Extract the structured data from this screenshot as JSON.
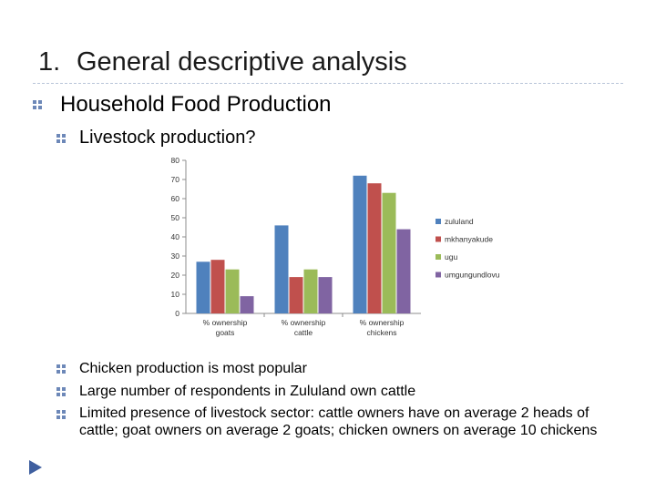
{
  "slide": {
    "title_number": "1.",
    "title_text": "General descriptive analysis",
    "heading": "Household Food Production",
    "subheading": "Livestock production?",
    "bullets": [
      "Chicken production is most popular",
      "Large number of respondents in Zululand own cattle",
      "Limited presence of livestock sector: cattle owners have on average 2 heads of cattle; goat owners on average 2 goats; chicken owners on average 10 chickens"
    ]
  },
  "colors": {
    "title_rule": "#b8c4d8",
    "bullet": "#6d88b8",
    "nav": "#3f5f9f"
  },
  "chart_data": {
    "type": "bar",
    "categories": [
      [
        "% ownership",
        "goats"
      ],
      [
        "% ownership",
        "cattle"
      ],
      [
        "% ownership",
        "chickens"
      ]
    ],
    "series": [
      {
        "name": "zululand",
        "color": "#4f81bd",
        "values": [
          27,
          46,
          72
        ]
      },
      {
        "name": "mkhanyakude",
        "color": "#c0504d",
        "values": [
          28,
          19,
          68
        ]
      },
      {
        "name": "ugu",
        "color": "#9bbb59",
        "values": [
          23,
          23,
          63
        ]
      },
      {
        "name": "umgungundlovu",
        "color": "#8064a2",
        "values": [
          9,
          19,
          44
        ]
      }
    ],
    "ylim": [
      0,
      80
    ],
    "yticks": [
      0,
      10,
      20,
      30,
      40,
      50,
      60,
      70,
      80
    ],
    "grid": false,
    "legend": "right"
  }
}
